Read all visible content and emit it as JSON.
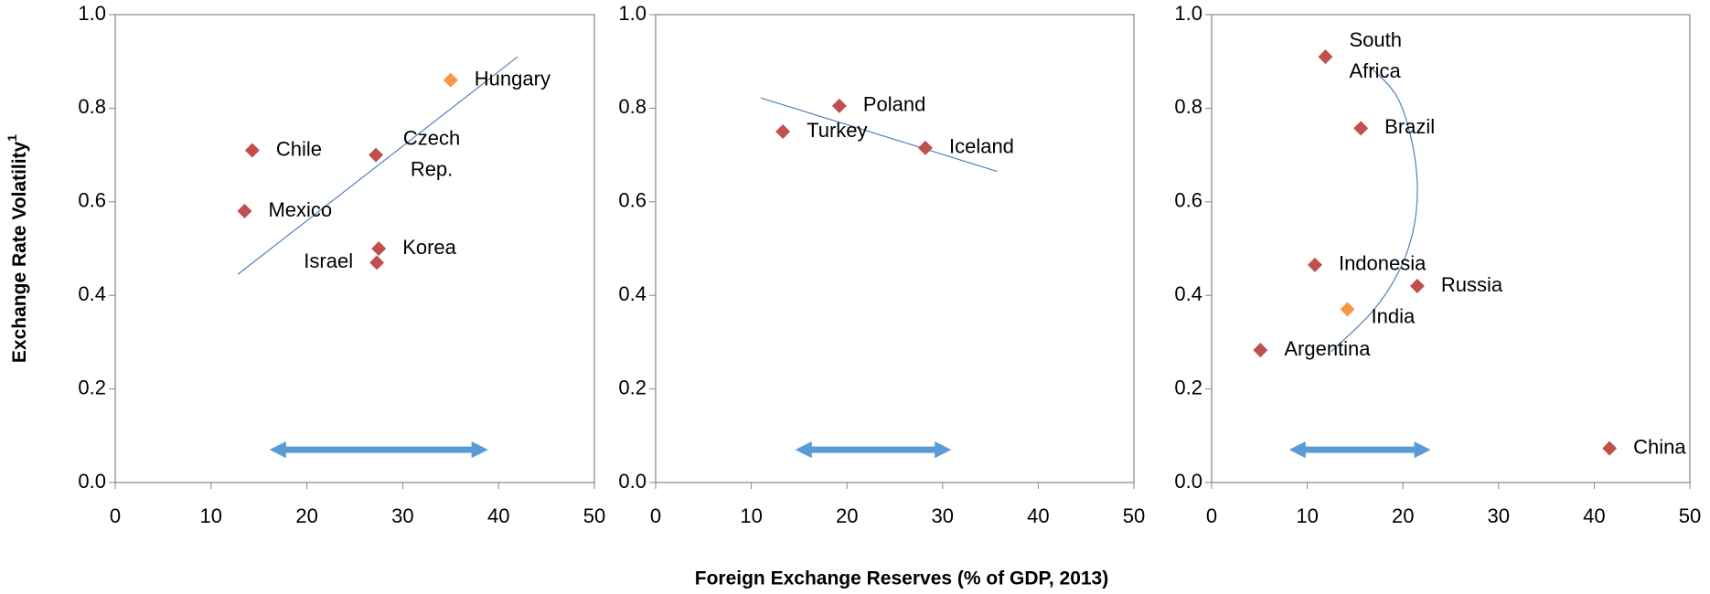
{
  "chart_data": [
    {
      "type": "scatter",
      "ylabel": "Exchange Rate Volatility",
      "ylabel_note": "1",
      "labels": [
        "Chile",
        "Mexico",
        "Czech Rep.",
        "Hungary",
        "Korea",
        "Israel"
      ],
      "x": [
        14.3,
        13.5,
        27.2,
        35,
        27.5,
        27.3
      ],
      "values": [
        0.71,
        0.58,
        0.7,
        0.86,
        0.5,
        0.47
      ],
      "colors": [
        "#c0504d",
        "#c0504d",
        "#c0504d",
        "#f79646",
        "#c0504d",
        "#c0504d"
      ],
      "trendline": {
        "x": [
          12.8,
          42
        ],
        "y": [
          0.445,
          0.91
        ]
      },
      "arrow": {
        "x": [
          16,
          39
        ],
        "y": 0.07
      },
      "xlim": [
        0,
        50
      ],
      "xticks": [
        0,
        10,
        20,
        30,
        40,
        50
      ],
      "ylim": [
        0,
        1
      ],
      "yticks": [
        {
          "value": 0,
          "label": "0.0"
        },
        0.2,
        0.4,
        0.6,
        0.8,
        {
          "value": 1,
          "label": "1.0"
        }
      ]
    },
    {
      "type": "scatter",
      "xlabel": "Foreign Exchange Reserves (% of GDP, 2013)",
      "labels": [
        "Poland",
        "Turkey",
        "Iceland"
      ],
      "x": [
        19.2,
        13.3,
        28.2
      ],
      "values": [
        0.805,
        0.75,
        0.715
      ],
      "colors": [
        "#c0504d",
        "#c0504d",
        "#c0504d"
      ],
      "trendline": {
        "x": [
          11,
          35.7
        ],
        "y": [
          0.822,
          0.665
        ]
      },
      "arrow": {
        "x": [
          14.5,
          31
        ],
        "y": 0.07
      },
      "xlim": [
        0,
        50
      ],
      "xticks": [
        0,
        10,
        20,
        30,
        40,
        50
      ],
      "ylim": [
        0,
        1
      ],
      "yticks": [
        {
          "value": 0,
          "label": "0.0"
        },
        0.2,
        0.4,
        0.6,
        0.8,
        {
          "value": 1,
          "label": "1.0"
        }
      ]
    },
    {
      "type": "scatter",
      "labels": [
        "South Africa",
        "Brazil",
        "Indonesia",
        "Russia",
        "India",
        "Argentina",
        "China"
      ],
      "x": [
        11.9,
        15.6,
        10.8,
        21.5,
        14.2,
        5.1,
        41.6
      ],
      "values": [
        0.91,
        0.757,
        0.465,
        0.42,
        0.37,
        0.283,
        0.073
      ],
      "colors": [
        "#c0504d",
        "#c0504d",
        "#c0504d",
        "#c0504d",
        "#f79646",
        "#c0504d",
        "#c0504d"
      ],
      "trendline": {
        "x": [
          12.5,
          17,
          20,
          21.4,
          21.2,
          19.5,
          16.5
        ],
        "y": [
          0.28,
          0.37,
          0.47,
          0.58,
          0.7,
          0.82,
          0.89
        ]
      },
      "arrow": {
        "x": [
          8,
          23
        ],
        "y": 0.07
      },
      "xlim": [
        0,
        50
      ],
      "xticks": [
        0,
        10,
        20,
        30,
        40,
        50
      ],
      "ylim": [
        0,
        1
      ],
      "yticks": [
        {
          "value": 0,
          "label": "0.0"
        },
        0.2,
        0.4,
        0.6,
        0.8,
        {
          "value": 1,
          "label": "1.0"
        }
      ]
    }
  ]
}
